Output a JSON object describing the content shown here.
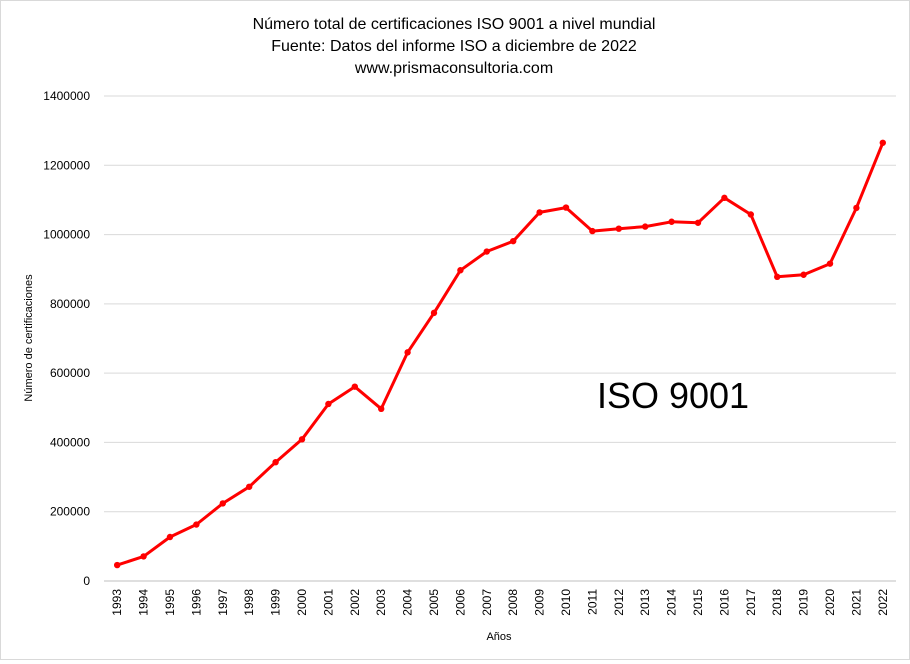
{
  "chart_data": {
    "type": "line",
    "title_lines": [
      "Número total de certificaciones ISO 9001 a nivel mundial",
      "Fuente: Datos del informe ISO  a diciembre de 2022",
      "www.prismaconsultoria.com"
    ],
    "xlabel": "Años",
    "ylabel": "Número  de certificaciones",
    "annotation": "ISO 9001",
    "ylim": [
      0,
      1400000
    ],
    "yticks": [
      0,
      200000,
      400000,
      600000,
      800000,
      1000000,
      1200000,
      1400000
    ],
    "ytick_labels": [
      "0",
      "200000",
      "400000",
      "600000",
      "800000",
      "1000000",
      "1200000",
      "1400000"
    ],
    "grid": true,
    "legend": "none",
    "line_color": "#ff0000",
    "x": [
      "1993",
      "1994",
      "1995",
      "1996",
      "1997",
      "1998",
      "1999",
      "2000",
      "2001",
      "2002",
      "2003",
      "2004",
      "2005",
      "2006",
      "2007",
      "2008",
      "2009",
      "2010",
      "2011",
      "2012",
      "2013",
      "2014",
      "2015",
      "2016",
      "2017",
      "2018",
      "2019",
      "2020",
      "2021",
      "2022"
    ],
    "series": [
      {
        "values": [
          46000,
          71000,
          127000,
          163000,
          224000,
          272000,
          343000,
          409000,
          511000,
          561000,
          497000,
          660000,
          774000,
          897000,
          951000,
          981000,
          1064000,
          1078000,
          1010000,
          1017000,
          1023000,
          1037000,
          1034000,
          1106000,
          1058000,
          878000,
          884000,
          916000,
          1077000,
          1265000
        ]
      }
    ]
  }
}
